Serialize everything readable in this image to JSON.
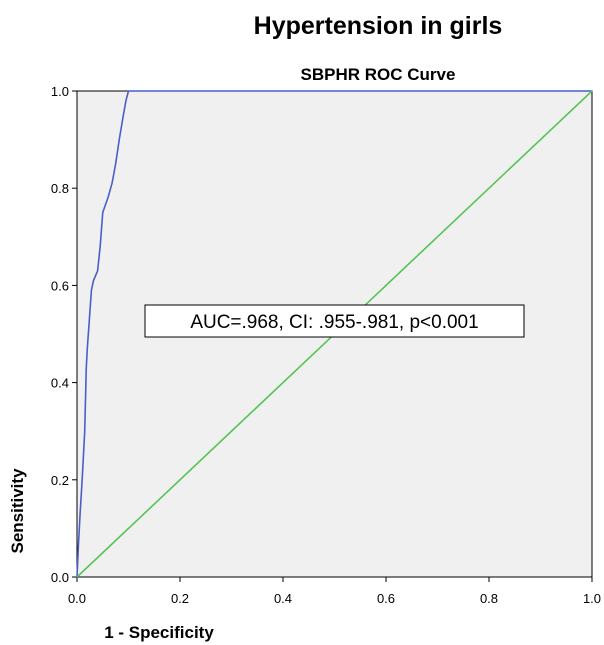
{
  "chart_data": {
    "type": "line",
    "title": "Hypertension in girls",
    "subtitle": "SBPHR ROC Curve",
    "xlabel": "1 - Specificity",
    "ylabel": "Sensitivity",
    "xlim": [
      0,
      1
    ],
    "ylim": [
      0,
      1
    ],
    "x_ticks": [
      "0.0",
      "0.2",
      "0.4",
      "0.6",
      "0.8",
      "1.0"
    ],
    "y_ticks": [
      "0.0",
      "0.2",
      "0.4",
      "0.6",
      "0.8",
      "1.0"
    ],
    "grid": false,
    "plot_background": "#f0f0f0",
    "annotation": "AUC=.968, CI: .955-.981, p<0.001",
    "series": [
      {
        "color": "#4a5ec8",
        "x": [
          0.0,
          0.003,
          0.006,
          0.01,
          0.012,
          0.015,
          0.018,
          0.02,
          0.022,
          0.028,
          0.032,
          0.04,
          0.042,
          0.045,
          0.05,
          0.06,
          0.068,
          0.075,
          0.082,
          0.09,
          0.095,
          0.1,
          1.0
        ],
        "y": [
          0.0,
          0.07,
          0.13,
          0.2,
          0.24,
          0.3,
          0.43,
          0.47,
          0.5,
          0.59,
          0.61,
          0.63,
          0.65,
          0.68,
          0.75,
          0.78,
          0.81,
          0.85,
          0.9,
          0.95,
          0.98,
          1.0,
          1.0
        ]
      },
      {
        "color": "#55c455",
        "x": [
          0,
          1
        ],
        "y": [
          0,
          1
        ]
      }
    ]
  }
}
